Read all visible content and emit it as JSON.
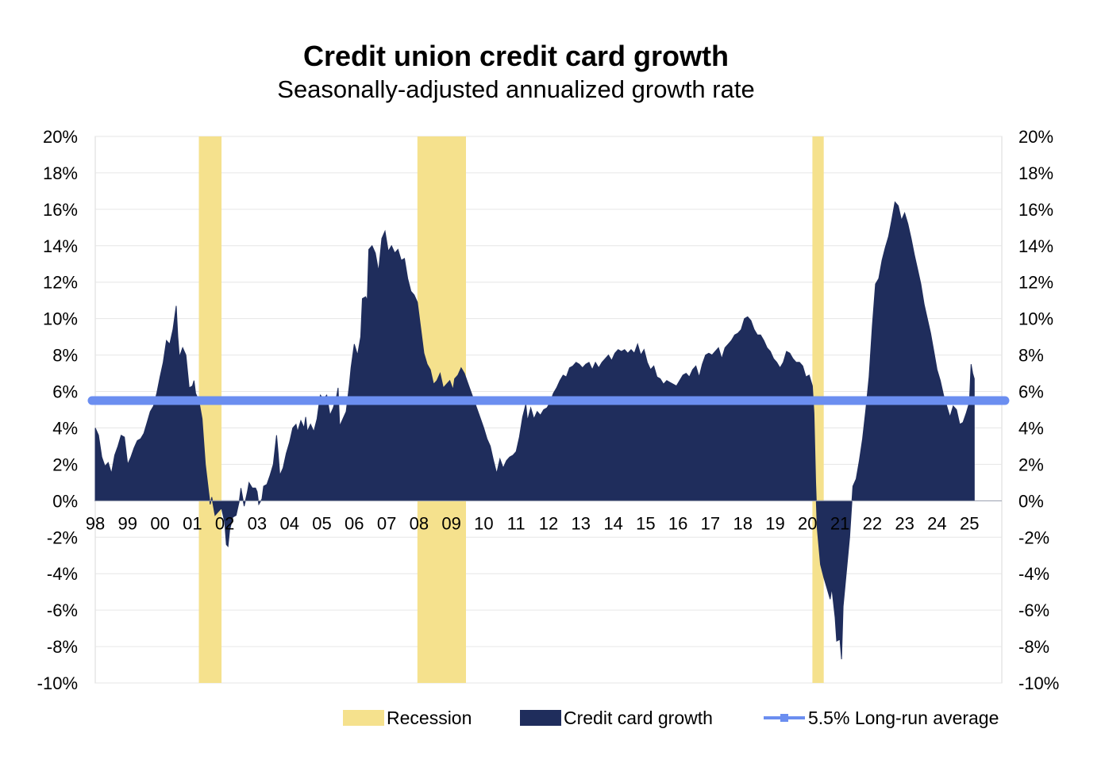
{
  "chart_data": {
    "type": "area",
    "title": "Credit union credit card growth",
    "subtitle": "Seasonally-adjusted annualized growth rate",
    "ylim": [
      -10,
      20
    ],
    "yticks": [
      "20%",
      "18%",
      "16%",
      "14%",
      "12%",
      "10%",
      "8%",
      "6%",
      "4%",
      "2%",
      "0%",
      "-2%",
      "-4%",
      "-6%",
      "-8%",
      "-10%"
    ],
    "xticks": [
      "98",
      "99",
      "00",
      "01",
      "02",
      "03",
      "04",
      "05",
      "06",
      "07",
      "08",
      "09",
      "10",
      "11",
      "12",
      "13",
      "14",
      "15",
      "16",
      "17",
      "18",
      "19",
      "20",
      "21",
      "22",
      "23",
      "24",
      "25"
    ],
    "x_unit_start_year": 1998,
    "grid": true,
    "legend_position": "bottom",
    "recessions": [
      [
        2001.2,
        2001.9
      ],
      [
        2007.95,
        2009.45
      ],
      [
        2020.15,
        2020.5
      ]
    ],
    "long_run_average": 5.5,
    "series": [
      {
        "name": "Credit card growth",
        "color": "#1f2d5c",
        "points": [
          [
            1998.0,
            4.0
          ],
          [
            1998.1,
            3.6
          ],
          [
            1998.2,
            2.4
          ],
          [
            1998.3,
            1.9
          ],
          [
            1998.4,
            2.1
          ],
          [
            1998.5,
            1.5
          ],
          [
            1998.6,
            2.5
          ],
          [
            1998.7,
            3.0
          ],
          [
            1998.8,
            3.6
          ],
          [
            1998.9,
            3.5
          ],
          [
            1999.0,
            2.0
          ],
          [
            1999.1,
            2.4
          ],
          [
            1999.2,
            2.9
          ],
          [
            1999.3,
            3.3
          ],
          [
            1999.4,
            3.4
          ],
          [
            1999.5,
            3.7
          ],
          [
            1999.6,
            4.3
          ],
          [
            1999.7,
            4.9
          ],
          [
            1999.8,
            5.2
          ],
          [
            1999.9,
            5.9
          ],
          [
            2000.0,
            6.8
          ],
          [
            2000.1,
            7.6
          ],
          [
            2000.2,
            8.8
          ],
          [
            2000.3,
            8.6
          ],
          [
            2000.4,
            9.4
          ],
          [
            2000.5,
            10.7
          ],
          [
            2000.55,
            9.0
          ],
          [
            2000.6,
            7.9
          ],
          [
            2000.7,
            8.4
          ],
          [
            2000.8,
            8.0
          ],
          [
            2000.9,
            6.2
          ],
          [
            2001.0,
            6.3
          ],
          [
            2001.05,
            6.6
          ],
          [
            2001.1,
            5.9
          ],
          [
            2001.2,
            5.5
          ],
          [
            2001.3,
            4.5
          ],
          [
            2001.4,
            2.0
          ],
          [
            2001.5,
            0.5
          ],
          [
            2001.55,
            -0.2
          ],
          [
            2001.6,
            0.2
          ],
          [
            2001.7,
            -0.8
          ],
          [
            2001.8,
            -0.6
          ],
          [
            2001.9,
            -0.4
          ],
          [
            2002.0,
            -1.2
          ],
          [
            2002.05,
            -2.4
          ],
          [
            2002.1,
            -2.5
          ],
          [
            2002.15,
            -1.6
          ],
          [
            2002.25,
            -0.9
          ],
          [
            2002.35,
            -0.8
          ],
          [
            2002.45,
            0.0
          ],
          [
            2002.5,
            0.7
          ],
          [
            2002.6,
            -0.3
          ],
          [
            2002.7,
            0.5
          ],
          [
            2002.75,
            1.0
          ],
          [
            2002.85,
            0.7
          ],
          [
            2002.95,
            0.7
          ],
          [
            2003.0,
            0.5
          ],
          [
            2003.05,
            -0.2
          ],
          [
            2003.15,
            0.1
          ],
          [
            2003.2,
            0.8
          ],
          [
            2003.3,
            0.9
          ],
          [
            2003.4,
            1.4
          ],
          [
            2003.5,
            2.0
          ],
          [
            2003.6,
            3.6
          ],
          [
            2003.65,
            2.6
          ],
          [
            2003.7,
            1.4
          ],
          [
            2003.8,
            1.8
          ],
          [
            2003.9,
            2.6
          ],
          [
            2004.0,
            3.2
          ],
          [
            2004.1,
            4.0
          ],
          [
            2004.2,
            4.2
          ],
          [
            2004.25,
            3.8
          ],
          [
            2004.35,
            4.4
          ],
          [
            2004.45,
            4.0
          ],
          [
            2004.5,
            4.6
          ],
          [
            2004.55,
            3.8
          ],
          [
            2004.65,
            4.2
          ],
          [
            2004.75,
            3.8
          ],
          [
            2004.85,
            4.5
          ],
          [
            2004.95,
            5.8
          ],
          [
            2005.05,
            5.6
          ],
          [
            2005.15,
            5.8
          ],
          [
            2005.25,
            4.7
          ],
          [
            2005.35,
            5.1
          ],
          [
            2005.45,
            5.7
          ],
          [
            2005.5,
            6.2
          ],
          [
            2005.55,
            4.1
          ],
          [
            2005.65,
            4.5
          ],
          [
            2005.75,
            4.9
          ],
          [
            2005.85,
            6.4
          ],
          [
            2005.9,
            7.3
          ],
          [
            2006.0,
            8.6
          ],
          [
            2006.1,
            8.0
          ],
          [
            2006.2,
            9.0
          ],
          [
            2006.25,
            11.1
          ],
          [
            2006.35,
            11.2
          ],
          [
            2006.4,
            11.0
          ],
          [
            2006.45,
            13.8
          ],
          [
            2006.55,
            14.0
          ],
          [
            2006.65,
            13.6
          ],
          [
            2006.75,
            12.6
          ],
          [
            2006.85,
            14.4
          ],
          [
            2006.95,
            14.8
          ],
          [
            2007.05,
            13.7
          ],
          [
            2007.15,
            14.0
          ],
          [
            2007.25,
            13.6
          ],
          [
            2007.35,
            13.8
          ],
          [
            2007.45,
            13.2
          ],
          [
            2007.55,
            13.3
          ],
          [
            2007.65,
            12.2
          ],
          [
            2007.75,
            11.5
          ],
          [
            2007.85,
            11.3
          ],
          [
            2007.95,
            10.9
          ],
          [
            2008.05,
            9.5
          ],
          [
            2008.15,
            8.1
          ],
          [
            2008.25,
            7.5
          ],
          [
            2008.35,
            7.2
          ],
          [
            2008.45,
            6.4
          ],
          [
            2008.55,
            6.6
          ],
          [
            2008.65,
            7.0
          ],
          [
            2008.75,
            6.2
          ],
          [
            2008.85,
            6.4
          ],
          [
            2008.95,
            6.6
          ],
          [
            2009.05,
            6.1
          ],
          [
            2009.1,
            6.7
          ],
          [
            2009.2,
            6.9
          ],
          [
            2009.3,
            7.3
          ],
          [
            2009.4,
            7.0
          ],
          [
            2009.5,
            6.5
          ],
          [
            2009.6,
            6.0
          ],
          [
            2009.7,
            5.5
          ],
          [
            2009.8,
            5.0
          ],
          [
            2009.9,
            4.5
          ],
          [
            2010.0,
            4.0
          ],
          [
            2010.1,
            3.4
          ],
          [
            2010.2,
            3.0
          ],
          [
            2010.3,
            2.2
          ],
          [
            2010.4,
            1.5
          ],
          [
            2010.5,
            2.3
          ],
          [
            2010.6,
            1.8
          ],
          [
            2010.7,
            2.2
          ],
          [
            2010.8,
            2.4
          ],
          [
            2010.9,
            2.5
          ],
          [
            2011.0,
            2.7
          ],
          [
            2011.1,
            3.5
          ],
          [
            2011.2,
            4.6
          ],
          [
            2011.3,
            5.3
          ],
          [
            2011.35,
            4.4
          ],
          [
            2011.45,
            5.1
          ],
          [
            2011.55,
            4.5
          ],
          [
            2011.65,
            4.9
          ],
          [
            2011.75,
            4.7
          ],
          [
            2011.85,
            5.0
          ],
          [
            2011.95,
            5.1
          ],
          [
            2012.05,
            5.4
          ],
          [
            2012.15,
            5.9
          ],
          [
            2012.25,
            6.2
          ],
          [
            2012.35,
            6.6
          ],
          [
            2012.45,
            6.9
          ],
          [
            2012.55,
            6.8
          ],
          [
            2012.65,
            7.3
          ],
          [
            2012.75,
            7.4
          ],
          [
            2012.85,
            7.6
          ],
          [
            2012.95,
            7.5
          ],
          [
            2013.05,
            7.3
          ],
          [
            2013.15,
            7.5
          ],
          [
            2013.25,
            7.6
          ],
          [
            2013.35,
            7.2
          ],
          [
            2013.45,
            7.6
          ],
          [
            2013.55,
            7.3
          ],
          [
            2013.65,
            7.6
          ],
          [
            2013.75,
            7.8
          ],
          [
            2013.85,
            8.0
          ],
          [
            2013.95,
            7.7
          ],
          [
            2014.05,
            8.1
          ],
          [
            2014.15,
            8.3
          ],
          [
            2014.25,
            8.2
          ],
          [
            2014.35,
            8.3
          ],
          [
            2014.45,
            8.1
          ],
          [
            2014.55,
            8.3
          ],
          [
            2014.65,
            8.1
          ],
          [
            2014.75,
            8.6
          ],
          [
            2014.85,
            8.0
          ],
          [
            2014.95,
            8.3
          ],
          [
            2015.05,
            7.6
          ],
          [
            2015.15,
            7.2
          ],
          [
            2015.25,
            7.4
          ],
          [
            2015.35,
            6.8
          ],
          [
            2015.45,
            6.7
          ],
          [
            2015.55,
            6.4
          ],
          [
            2015.65,
            6.6
          ],
          [
            2015.75,
            6.5
          ],
          [
            2015.85,
            6.4
          ],
          [
            2015.95,
            6.3
          ],
          [
            2016.05,
            6.6
          ],
          [
            2016.15,
            6.9
          ],
          [
            2016.25,
            7.0
          ],
          [
            2016.35,
            6.8
          ],
          [
            2016.45,
            7.2
          ],
          [
            2016.55,
            7.4
          ],
          [
            2016.65,
            6.8
          ],
          [
            2016.75,
            7.5
          ],
          [
            2016.85,
            8.0
          ],
          [
            2016.95,
            8.1
          ],
          [
            2017.05,
            8.0
          ],
          [
            2017.15,
            8.2
          ],
          [
            2017.25,
            8.4
          ],
          [
            2017.35,
            7.8
          ],
          [
            2017.45,
            8.4
          ],
          [
            2017.55,
            8.6
          ],
          [
            2017.65,
            8.8
          ],
          [
            2017.75,
            9.1
          ],
          [
            2017.85,
            9.2
          ],
          [
            2017.95,
            9.4
          ],
          [
            2018.05,
            10.0
          ],
          [
            2018.15,
            10.1
          ],
          [
            2018.25,
            9.9
          ],
          [
            2018.35,
            9.4
          ],
          [
            2018.45,
            9.1
          ],
          [
            2018.55,
            9.1
          ],
          [
            2018.65,
            8.8
          ],
          [
            2018.75,
            8.4
          ],
          [
            2018.85,
            8.2
          ],
          [
            2018.95,
            7.8
          ],
          [
            2019.05,
            7.6
          ],
          [
            2019.15,
            7.3
          ],
          [
            2019.25,
            7.6
          ],
          [
            2019.35,
            8.2
          ],
          [
            2019.45,
            8.1
          ],
          [
            2019.55,
            7.8
          ],
          [
            2019.65,
            7.6
          ],
          [
            2019.75,
            7.6
          ],
          [
            2019.85,
            7.4
          ],
          [
            2019.95,
            6.8
          ],
          [
            2020.05,
            6.9
          ],
          [
            2020.15,
            6.3
          ],
          [
            2020.2,
            4.8
          ],
          [
            2020.25,
            1.0
          ],
          [
            2020.3,
            -1.5
          ],
          [
            2020.4,
            -3.5
          ],
          [
            2020.5,
            -4.2
          ],
          [
            2020.6,
            -4.8
          ],
          [
            2020.7,
            -5.4
          ],
          [
            2020.75,
            -4.8
          ],
          [
            2020.85,
            -6.4
          ],
          [
            2020.9,
            -7.7
          ],
          [
            2021.0,
            -7.6
          ],
          [
            2021.05,
            -8.7
          ],
          [
            2021.1,
            -5.8
          ],
          [
            2021.2,
            -3.9
          ],
          [
            2021.3,
            -2.0
          ],
          [
            2021.4,
            0.8
          ],
          [
            2021.5,
            1.2
          ],
          [
            2021.6,
            2.2
          ],
          [
            2021.7,
            3.4
          ],
          [
            2021.8,
            5.0
          ],
          [
            2021.9,
            6.8
          ],
          [
            2022.0,
            9.6
          ],
          [
            2022.1,
            11.9
          ],
          [
            2022.2,
            12.2
          ],
          [
            2022.3,
            13.2
          ],
          [
            2022.4,
            13.9
          ],
          [
            2022.5,
            14.5
          ],
          [
            2022.6,
            15.4
          ],
          [
            2022.7,
            16.4
          ],
          [
            2022.8,
            16.2
          ],
          [
            2022.9,
            15.4
          ],
          [
            2023.0,
            15.8
          ],
          [
            2023.1,
            15.2
          ],
          [
            2023.2,
            14.4
          ],
          [
            2023.3,
            13.5
          ],
          [
            2023.4,
            12.7
          ],
          [
            2023.5,
            11.9
          ],
          [
            2023.6,
            10.8
          ],
          [
            2023.7,
            10.0
          ],
          [
            2023.8,
            9.2
          ],
          [
            2023.9,
            8.2
          ],
          [
            2024.0,
            7.2
          ],
          [
            2024.1,
            6.6
          ],
          [
            2024.2,
            5.8
          ],
          [
            2024.3,
            5.2
          ],
          [
            2024.4,
            4.6
          ],
          [
            2024.5,
            5.2
          ],
          [
            2024.6,
            5.0
          ],
          [
            2024.7,
            4.2
          ],
          [
            2024.8,
            4.3
          ],
          [
            2024.9,
            4.8
          ],
          [
            2025.0,
            5.4
          ],
          [
            2025.05,
            7.5
          ],
          [
            2025.1,
            7.0
          ],
          [
            2025.15,
            6.7
          ]
        ]
      }
    ],
    "legend": [
      {
        "label": "Recession",
        "color": "#f5e18d",
        "kind": "box"
      },
      {
        "label": "Credit card growth",
        "color": "#1f2d5c",
        "kind": "box"
      },
      {
        "label": "5.5% Long-run average",
        "color": "#6b8ef0",
        "kind": "line"
      }
    ]
  }
}
